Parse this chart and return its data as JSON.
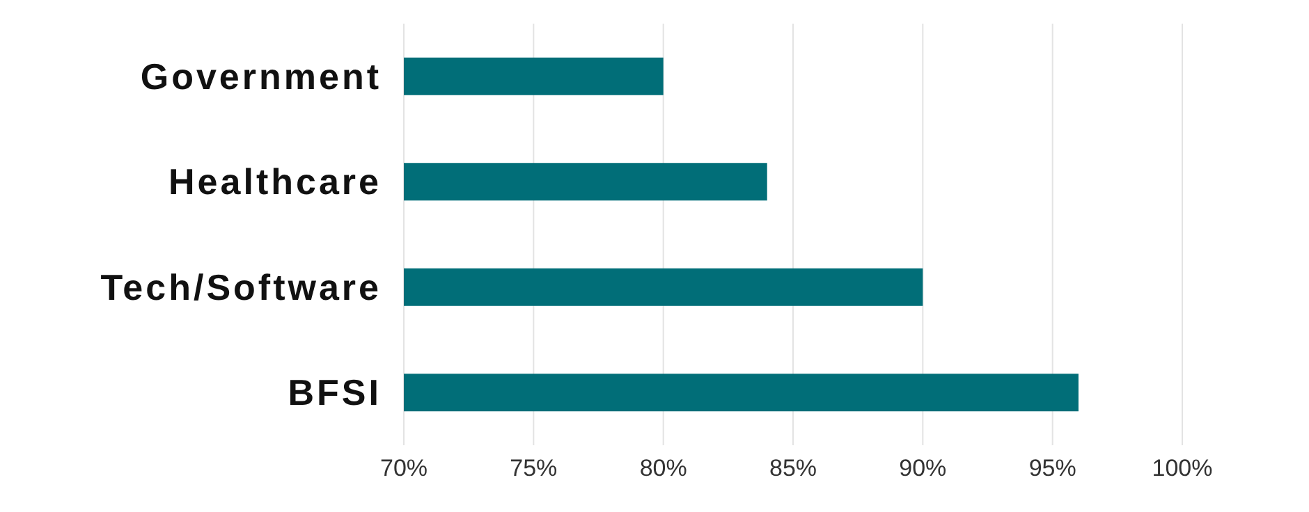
{
  "chart_data": {
    "type": "bar",
    "orientation": "horizontal",
    "categories": [
      "Government",
      "Healthcare",
      "Tech/Software",
      "BFSI"
    ],
    "values": [
      80,
      84,
      90,
      96
    ],
    "color": "#016e78",
    "xlim": [
      70,
      100
    ],
    "xticks": [
      {
        "value": 70,
        "label": "70%"
      },
      {
        "value": 75,
        "label": "75%"
      },
      {
        "value": 80,
        "label": "80%"
      },
      {
        "value": 85,
        "label": "85%"
      },
      {
        "value": 90,
        "label": "90%"
      },
      {
        "value": 95,
        "label": "95%"
      },
      {
        "value": 100,
        "label": "100%"
      }
    ],
    "grid": "x"
  }
}
